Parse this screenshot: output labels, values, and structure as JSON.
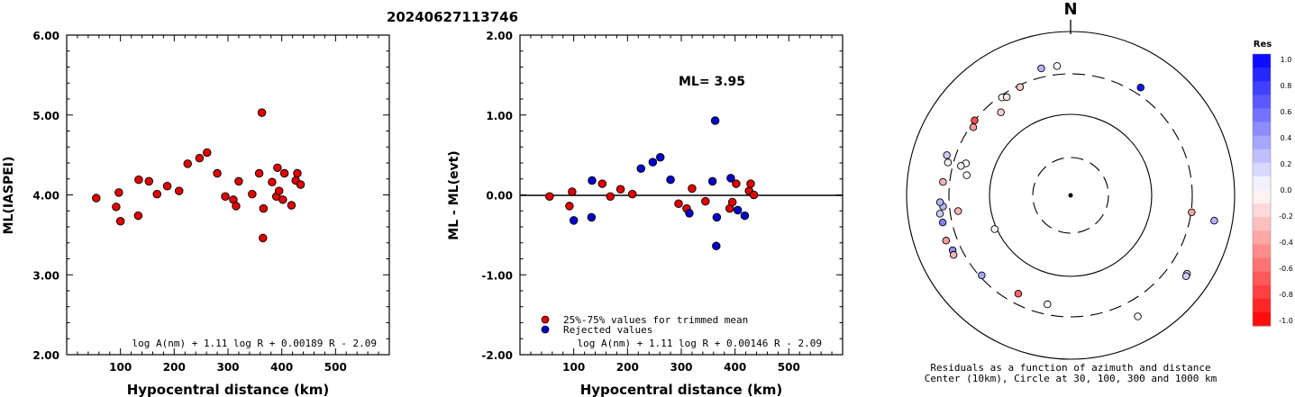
{
  "title": "20240627113746",
  "chart_data": [
    {
      "type": "scatter",
      "xlabel": "Hypocentral distance (km)",
      "ylabel": "ML(IASPEI)",
      "xlim": [
        0,
        600
      ],
      "ylim": [
        2.0,
        6.0
      ],
      "xticks": [
        "100",
        "200",
        "300",
        "400",
        "500"
      ],
      "yticks": [
        "2.00",
        "3.00",
        "4.00",
        "5.00",
        "6.00"
      ],
      "formula": "log A(nm) + 1.11 log R + 0.00189 R - 2.09",
      "points": [
        {
          "x": 55,
          "y": 3.96
        },
        {
          "x": 92,
          "y": 3.85
        },
        {
          "x": 97,
          "y": 4.03
        },
        {
          "x": 100,
          "y": 3.67
        },
        {
          "x": 133,
          "y": 3.74
        },
        {
          "x": 134,
          "y": 4.19
        },
        {
          "x": 153,
          "y": 4.17
        },
        {
          "x": 168,
          "y": 4.01
        },
        {
          "x": 187,
          "y": 4.11
        },
        {
          "x": 209,
          "y": 4.05
        },
        {
          "x": 225,
          "y": 4.39
        },
        {
          "x": 247,
          "y": 4.46
        },
        {
          "x": 261,
          "y": 4.53
        },
        {
          "x": 280,
          "y": 4.27
        },
        {
          "x": 295,
          "y": 3.98
        },
        {
          "x": 310,
          "y": 3.94
        },
        {
          "x": 315,
          "y": 3.86
        },
        {
          "x": 320,
          "y": 4.17
        },
        {
          "x": 345,
          "y": 4.01
        },
        {
          "x": 358,
          "y": 4.27
        },
        {
          "x": 363,
          "y": 5.03
        },
        {
          "x": 365,
          "y": 3.46
        },
        {
          "x": 366,
          "y": 3.83
        },
        {
          "x": 382,
          "y": 4.16
        },
        {
          "x": 390,
          "y": 3.98
        },
        {
          "x": 392,
          "y": 4.34
        },
        {
          "x": 395,
          "y": 4.05
        },
        {
          "x": 402,
          "y": 3.94
        },
        {
          "x": 405,
          "y": 4.27
        },
        {
          "x": 418,
          "y": 3.87
        },
        {
          "x": 426,
          "y": 4.18
        },
        {
          "x": 429,
          "y": 4.27
        },
        {
          "x": 435,
          "y": 4.13
        }
      ]
    },
    {
      "type": "scatter",
      "xlabel": "Hypocentral distance (km)",
      "ylabel": "ML - ML(evt)",
      "xlim": [
        0,
        600
      ],
      "ylim": [
        -2.0,
        2.0
      ],
      "xticks": [
        "100",
        "200",
        "300",
        "400",
        "500"
      ],
      "yticks": [
        "-2.00",
        "-1.00",
        "0.00",
        "1.00",
        "2.00"
      ],
      "annotation": "ML= 3.95",
      "formula": "log A(nm) + 1.11 log R + 0.00146 R - 2.09",
      "legend": [
        {
          "label": "25%-75% values for trimmed mean",
          "color": "#e00000"
        },
        {
          "label": "Rejected values",
          "color": "#0000cc"
        }
      ],
      "series": [
        {
          "name": "25%-75% values for trimmed mean",
          "color": "#e00000",
          "points": [
            {
              "x": 55,
              "y": -0.02
            },
            {
              "x": 92,
              "y": -0.14
            },
            {
              "x": 97,
              "y": 0.04
            },
            {
              "x": 153,
              "y": 0.14
            },
            {
              "x": 168,
              "y": -0.02
            },
            {
              "x": 187,
              "y": 0.07
            },
            {
              "x": 209,
              "y": 0.01
            },
            {
              "x": 295,
              "y": -0.11
            },
            {
              "x": 310,
              "y": -0.17
            },
            {
              "x": 320,
              "y": 0.08
            },
            {
              "x": 345,
              "y": -0.08
            },
            {
              "x": 390,
              "y": -0.17
            },
            {
              "x": 395,
              "y": -0.09
            },
            {
              "x": 402,
              "y": 0.14
            },
            {
              "x": 426,
              "y": 0.05
            },
            {
              "x": 429,
              "y": 0.14
            },
            {
              "x": 435,
              "y": 0.0
            }
          ]
        },
        {
          "name": "Rejected values",
          "color": "#0000cc",
          "points": [
            {
              "x": 100,
              "y": -0.32
            },
            {
              "x": 133,
              "y": -0.28
            },
            {
              "x": 134,
              "y": 0.18
            },
            {
              "x": 225,
              "y": 0.33
            },
            {
              "x": 247,
              "y": 0.41
            },
            {
              "x": 261,
              "y": 0.47
            },
            {
              "x": 280,
              "y": 0.19
            },
            {
              "x": 315,
              "y": -0.23
            },
            {
              "x": 358,
              "y": 0.17
            },
            {
              "x": 363,
              "y": 0.93
            },
            {
              "x": 365,
              "y": -0.64
            },
            {
              "x": 366,
              "y": -0.28
            },
            {
              "x": 392,
              "y": 0.21
            },
            {
              "x": 405,
              "y": -0.19
            },
            {
              "x": 418,
              "y": -0.26
            }
          ]
        }
      ]
    },
    {
      "type": "polar-scatter",
      "north_label": "N",
      "caption": [
        "Residuals as a function of azimuth and distance",
        "Center (10km), Circle at 30, 100, 300 and 1000 km"
      ],
      "rings": [
        {
          "distance_km": 30,
          "style": "dashed"
        },
        {
          "distance_km": 100,
          "style": "solid"
        },
        {
          "distance_km": 300,
          "style": "dashed"
        },
        {
          "distance_km": 1000,
          "style": "solid"
        }
      ],
      "colorbar": {
        "title": "Res",
        "ticks": [
          "1.0",
          "0.8",
          "0.6",
          "0.4",
          "0.2",
          "0.0",
          "-0.2",
          "-0.4",
          "-0.6",
          "-0.8",
          "-1.0"
        ]
      },
      "stations": [
        {
          "azimuth": 347,
          "distance_km": 445,
          "res": 0.3
        },
        {
          "azimuth": 354,
          "distance_km": 440,
          "res": 0.0
        },
        {
          "azimuth": 33,
          "distance_km": 415,
          "res": 0.93
        },
        {
          "azimuth": 325,
          "distance_km": 290,
          "res": -0.05
        },
        {
          "azimuth": 327,
          "distance_km": 278,
          "res": -0.1
        },
        {
          "azimuth": 335,
          "distance_km": 290,
          "res": -0.2
        },
        {
          "azimuth": 320,
          "distance_km": 235,
          "res": -0.2
        },
        {
          "azimuth": 308,
          "distance_km": 303,
          "res": -0.7
        },
        {
          "azimuth": 305,
          "distance_km": 286,
          "res": -0.4
        },
        {
          "azimuth": 288,
          "distance_km": 440,
          "res": 0.2
        },
        {
          "azimuth": 285,
          "distance_km": 388,
          "res": 0.05
        },
        {
          "azimuth": 287,
          "distance_km": 240,
          "res": 0.0
        },
        {
          "azimuth": 285,
          "distance_km": 260,
          "res": 0.05
        },
        {
          "azimuth": 281,
          "distance_km": 222,
          "res": 0.0
        },
        {
          "azimuth": 276,
          "distance_km": 410,
          "res": -0.3
        },
        {
          "azimuth": 265,
          "distance_km": 405,
          "res": 0.28
        },
        {
          "azimuth": 267,
          "distance_km": 450,
          "res": 0.3
        },
        {
          "azimuth": 262,
          "distance_km": 470,
          "res": 0.2
        },
        {
          "azimuth": 258,
          "distance_km": 450,
          "res": 0.5
        },
        {
          "azimuth": 250,
          "distance_km": 480,
          "res": -0.4
        },
        {
          "azimuth": 245,
          "distance_km": 440,
          "res": 0.45
        },
        {
          "azimuth": 243,
          "distance_km": 460,
          "res": -0.3
        },
        {
          "azimuth": 262,
          "distance_km": 260,
          "res": -0.3
        },
        {
          "azimuth": 246,
          "distance_km": 110,
          "res": 0.0
        },
        {
          "azimuth": 228,
          "distance_km": 290,
          "res": 0.35
        },
        {
          "azimuth": 208,
          "distance_km": 250,
          "res": -0.6
        },
        {
          "azimuth": 192,
          "distance_km": 250,
          "res": 0.0
        },
        {
          "azimuth": 98,
          "distance_km": 310,
          "res": -0.35
        },
        {
          "azimuth": 100,
          "distance_km": 700,
          "res": 0.3
        },
        {
          "azimuth": 124,
          "distance_km": 610,
          "res": 0.2
        },
        {
          "azimuth": 125,
          "distance_km": 620,
          "res": 0.2
        },
        {
          "azimuth": 151,
          "distance_km": 580,
          "res": 0.0
        }
      ]
    }
  ]
}
